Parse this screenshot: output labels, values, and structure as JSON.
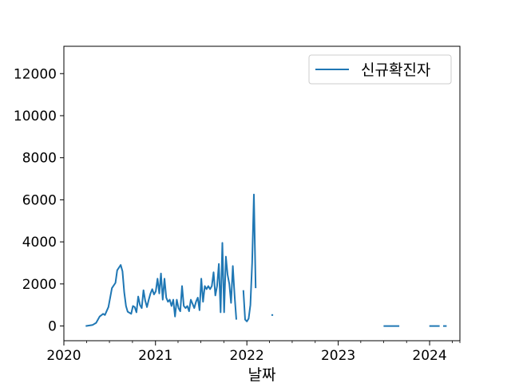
{
  "chart_data": {
    "type": "line",
    "title": "",
    "xlabel": "날짜",
    "ylabel": "",
    "xlim": [
      "2020-01-01",
      "2024-05-01"
    ],
    "ylim": [
      -700,
      13300
    ],
    "grid": false,
    "legend_position": "top-right",
    "x_ticks": [
      "2020-01-01",
      "2021-01-01",
      "2022-01-01",
      "2023-01-01",
      "2024-01-01"
    ],
    "x_tick_labels": [
      "2020",
      "2021",
      "2022",
      "2023",
      "2024"
    ],
    "y_ticks": [
      0,
      2000,
      4000,
      6000,
      8000,
      10000,
      12000
    ],
    "y_tick_labels": [
      "0",
      "2000",
      "4000",
      "6000",
      "8000",
      "10000",
      "12000"
    ],
    "series": [
      {
        "name": "신규확진자",
        "color": "#1f77b4",
        "segments": [
          [
            [
              "2020-03-28",
              0
            ],
            [
              "2020-04-25",
              50
            ],
            [
              "2020-05-09",
              150
            ],
            [
              "2020-05-23",
              450
            ],
            [
              "2020-06-06",
              580
            ],
            [
              "2020-06-13",
              520
            ],
            [
              "2020-06-27",
              900
            ],
            [
              "2020-07-11",
              1800
            ],
            [
              "2020-07-25",
              2050
            ],
            [
              "2020-08-01",
              2650
            ],
            [
              "2020-08-15",
              2900
            ],
            [
              "2020-08-22",
              2600
            ],
            [
              "2020-08-29",
              1600
            ],
            [
              "2020-09-05",
              950
            ],
            [
              "2020-09-12",
              680
            ],
            [
              "2020-09-26",
              580
            ],
            [
              "2020-10-03",
              950
            ],
            [
              "2020-10-10",
              900
            ],
            [
              "2020-10-17",
              650
            ],
            [
              "2020-10-24",
              1400
            ],
            [
              "2020-10-31",
              1000
            ],
            [
              "2020-11-07",
              850
            ],
            [
              "2020-11-14",
              1700
            ],
            [
              "2020-11-21",
              1200
            ],
            [
              "2020-11-28",
              900
            ],
            [
              "2020-12-05",
              1250
            ],
            [
              "2020-12-12",
              1550
            ],
            [
              "2020-12-19",
              1750
            ],
            [
              "2020-12-26",
              1500
            ],
            [
              "2021-01-02",
              1650
            ],
            [
              "2021-01-09",
              2250
            ],
            [
              "2021-01-16",
              1550
            ],
            [
              "2021-01-23",
              2500
            ],
            [
              "2021-01-30",
              1250
            ],
            [
              "2021-02-06",
              2250
            ],
            [
              "2021-02-13",
              1350
            ],
            [
              "2021-02-20",
              1150
            ],
            [
              "2021-02-27",
              1250
            ],
            [
              "2021-03-06",
              950
            ],
            [
              "2021-03-13",
              1250
            ],
            [
              "2021-03-20",
              450
            ],
            [
              "2021-03-27",
              1250
            ],
            [
              "2021-04-03",
              850
            ],
            [
              "2021-04-10",
              700
            ],
            [
              "2021-04-17",
              1900
            ],
            [
              "2021-04-24",
              950
            ],
            [
              "2021-05-01",
              850
            ],
            [
              "2021-05-08",
              950
            ],
            [
              "2021-05-15",
              700
            ],
            [
              "2021-05-22",
              1250
            ],
            [
              "2021-05-29",
              1050
            ],
            [
              "2021-06-05",
              850
            ],
            [
              "2021-06-12",
              1150
            ],
            [
              "2021-06-19",
              1350
            ],
            [
              "2021-06-26",
              750
            ],
            [
              "2021-07-03",
              2250
            ],
            [
              "2021-07-10",
              1150
            ],
            [
              "2021-07-17",
              1900
            ],
            [
              "2021-07-24",
              1750
            ],
            [
              "2021-07-31",
              1900
            ],
            [
              "2021-08-07",
              1750
            ],
            [
              "2021-08-14",
              1900
            ],
            [
              "2021-08-21",
              2550
            ],
            [
              "2021-08-28",
              1450
            ],
            [
              "2021-09-04",
              1900
            ],
            [
              "2021-09-11",
              2950
            ],
            [
              "2021-09-18",
              650
            ],
            [
              "2021-09-25",
              3950
            ],
            [
              "2021-10-02",
              650
            ],
            [
              "2021-10-09",
              3300
            ],
            [
              "2021-10-16",
              2450
            ],
            [
              "2021-10-23",
              2000
            ],
            [
              "2021-10-30",
              1100
            ],
            [
              "2021-11-06",
              2850
            ],
            [
              "2021-11-13",
              1450
            ],
            [
              "2021-11-20",
              300
            ]
          ],
          [
            [
              "2021-12-18",
              1700
            ],
            [
              "2021-12-25",
              300
            ],
            [
              "2022-01-01",
              220
            ],
            [
              "2022-01-08",
              350
            ],
            [
              "2022-01-15",
              1000
            ],
            [
              "2022-01-22",
              3000
            ],
            [
              "2022-01-29",
              6250
            ],
            [
              "2022-02-05",
              1800
            ]
          ],
          [
            [
              "2022-04-09",
              520
            ],
            [
              "2022-04-16",
              520
            ]
          ],
          [
            [
              "2023-07-01",
              0
            ],
            [
              "2023-09-02",
              0
            ]
          ],
          [
            [
              "2023-12-31",
              0
            ],
            [
              "2024-02-10",
              0
            ]
          ],
          [
            [
              "2024-02-24",
              0
            ],
            [
              "2024-03-09",
              0
            ]
          ]
        ]
      }
    ]
  }
}
